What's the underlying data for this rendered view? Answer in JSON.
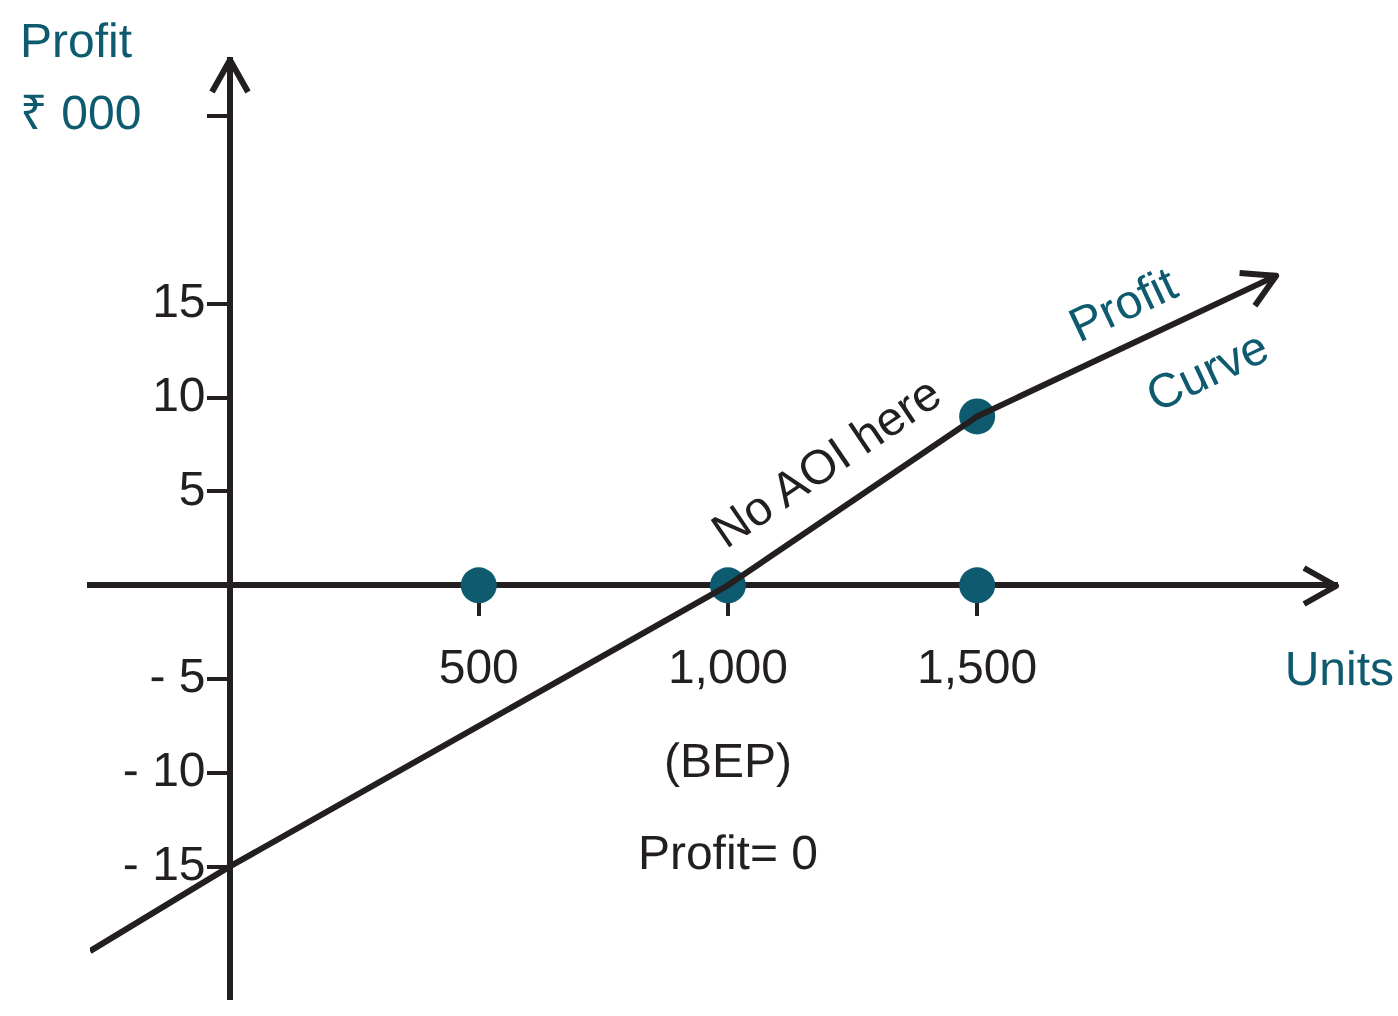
{
  "chart_data": {
    "type": "line",
    "xlabel": "Units",
    "ylabel": "Profit\n₹ 000",
    "xlim": [
      -280,
      2220
    ],
    "xticks": [
      500,
      {
        "value": 1000,
        "label": "1,000"
      },
      {
        "value": 1500,
        "label": "1,500"
      }
    ],
    "ylim": [
      -22,
      28
    ],
    "yticks": [
      {
        "value": -15,
        "label": "- 15"
      },
      {
        "value": -10,
        "label": "- 10"
      },
      {
        "value": -5,
        "label": "- 5"
      },
      5,
      10,
      15,
      {
        "value": 25,
        "label": null
      }
    ],
    "grid": false,
    "legend": false,
    "series": [
      {
        "name": "Profit Curve",
        "color": "#231f20",
        "marker": "none",
        "x": [
          -280,
          0,
          1000,
          1500,
          2100
        ],
        "values": [
          -19.5,
          -15,
          0,
          9,
          16.5
        ]
      },
      {
        "type": "scatter",
        "color": "#0e5b6f",
        "marker": "circle",
        "x": [
          500,
          1000,
          1500,
          1500
        ],
        "values": [
          0,
          0,
          0,
          9
        ]
      }
    ],
    "annotations": [
      {
        "text": "No AOI here",
        "x": 1250,
        "y": 4.5
      },
      "(BEP)",
      "Profit= 0"
    ]
  }
}
